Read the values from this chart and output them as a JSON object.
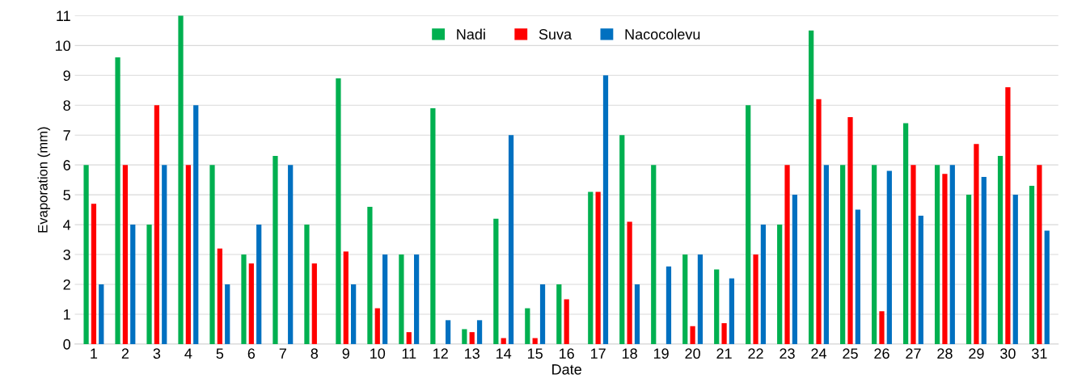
{
  "chart_data": {
    "type": "bar",
    "xlabel": "Date",
    "ylabel": "Evaporation (mm)",
    "categories": [
      "1",
      "2",
      "3",
      "4",
      "5",
      "6",
      "7",
      "8",
      "9",
      "10",
      "11",
      "12",
      "13",
      "14",
      "15",
      "16",
      "17",
      "18",
      "19",
      "20",
      "21",
      "22",
      "23",
      "24",
      "25",
      "26",
      "27",
      "28",
      "29",
      "30",
      "31"
    ],
    "series": [
      {
        "name": "Nadi",
        "color": "#00b050",
        "values": [
          6,
          9.6,
          4,
          11,
          6,
          3,
          6.3,
          4,
          8.9,
          4.6,
          3,
          7.9,
          0.5,
          4.2,
          1.2,
          2,
          5.1,
          7,
          6,
          3,
          2.5,
          8,
          4,
          10.5,
          6,
          6,
          7.4,
          6,
          5,
          6.3,
          5.3
        ]
      },
      {
        "name": "Suva",
        "color": "#ff0000",
        "values": [
          4.7,
          6,
          8,
          6,
          3.2,
          2.7,
          null,
          2.7,
          3.1,
          1.2,
          0.4,
          null,
          0.4,
          0.2,
          0.2,
          1.5,
          5.1,
          4.1,
          null,
          0.6,
          0.7,
          3,
          6,
          8.2,
          7.6,
          1.1,
          6,
          5.7,
          6.7,
          8.6,
          6
        ]
      },
      {
        "name": "Nacocolevu",
        "color": "#0070c0",
        "values": [
          2,
          4,
          6,
          8,
          2,
          4,
          6,
          null,
          2,
          3,
          3,
          0.8,
          0.8,
          7,
          2,
          null,
          9,
          2,
          2.6,
          3,
          2.2,
          4,
          5,
          6,
          4.5,
          5.8,
          4.3,
          6,
          5.6,
          5,
          3.8
        ]
      }
    ],
    "ylim": [
      0,
      11
    ],
    "yticks": [
      0,
      1,
      2,
      3,
      4,
      5,
      6,
      7,
      8,
      9,
      10,
      11
    ],
    "grid": "y",
    "legend": "top"
  }
}
